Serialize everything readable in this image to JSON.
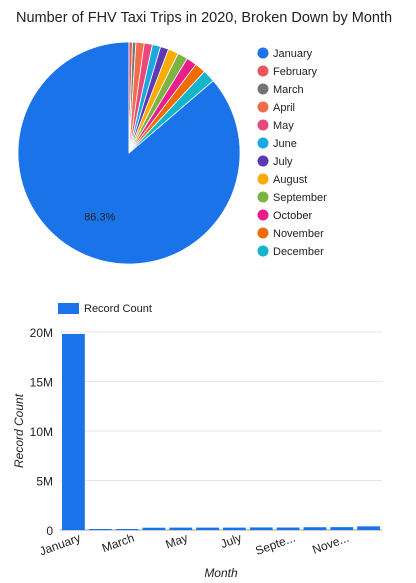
{
  "colors": {
    "January": "#1a73e8",
    "February": "#e8575a",
    "March": "#757575",
    "April": "#f06c4b",
    "May": "#e8497a",
    "June": "#1ba8e0",
    "July": "#5c3ab5",
    "August": "#f9ab00",
    "September": "#7cb342",
    "October": "#e91e8c",
    "November": "#ef6c00",
    "December": "#12b5cb"
  },
  "chart_data": [
    {
      "type": "pie",
      "title": "Number of FHV Taxi Trips in 2020, Broken Down by Month",
      "categories": [
        "January",
        "February",
        "March",
        "April",
        "May",
        "June",
        "July",
        "August",
        "September",
        "October",
        "November",
        "December"
      ],
      "values": [
        86.3,
        0.5,
        0.5,
        1.2,
        1.2,
        1.2,
        1.2,
        1.5,
        1.5,
        1.5,
        1.6,
        1.8
      ],
      "data_labels": [
        "86.3%",
        "",
        "",
        "",
        "",
        "",
        "",
        "",
        "",
        "",
        "",
        ""
      ],
      "legend_position": "right"
    },
    {
      "type": "bar",
      "legend_label": "Record Count",
      "legend_position": "top-left",
      "categories": [
        "January",
        "February",
        "March",
        "April",
        "May",
        "June",
        "July",
        "August",
        "September",
        "October",
        "November",
        "December"
      ],
      "tick_labels": [
        "January",
        "March",
        "May",
        "July",
        "Septe...",
        "Nove..."
      ],
      "values": [
        19800000,
        100000,
        100000,
        230000,
        240000,
        240000,
        240000,
        260000,
        250000,
        280000,
        290000,
        370000
      ],
      "xlabel": "Month",
      "ylabel": "Record Count",
      "ylim": [
        0,
        20000000
      ],
      "yticks": [
        0,
        5000000,
        10000000,
        15000000,
        20000000
      ],
      "ytick_labels": [
        "0",
        "5M",
        "10M",
        "15M",
        "20M"
      ],
      "grid": true
    }
  ]
}
